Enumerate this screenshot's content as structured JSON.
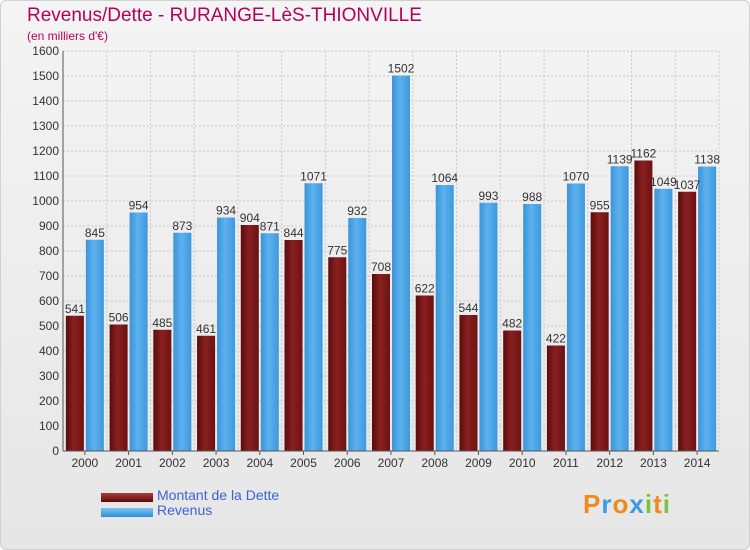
{
  "header": {
    "title": "Revenus/Dette - RURANGE-LèS-THIONVILLE",
    "subtitle": "(en milliers d'€)"
  },
  "brand": {
    "name": "Proxiti",
    "letters": [
      "P",
      "r",
      "o",
      "x",
      "i",
      "t",
      "i"
    ],
    "colors": [
      "#f08a1c",
      "#3a9be0",
      "#f08a1c",
      "#3a9be0",
      "#7dc143",
      "#f08a1c",
      "#7dc143"
    ]
  },
  "colors": {
    "dette": "#7a1616",
    "revenus": "#4aa3e6",
    "title": "#b5005b",
    "legend_text": "#3b63d8"
  },
  "chart_data": {
    "type": "bar",
    "title": "Revenus/Dette - RURANGE-LèS-THIONVILLE",
    "ylabel": "(en milliers d'€)",
    "xlabel": "",
    "ylim": [
      0,
      1600
    ],
    "yticks": [
      0,
      100,
      200,
      300,
      400,
      500,
      600,
      700,
      800,
      900,
      1000,
      1100,
      1200,
      1300,
      1400,
      1500,
      1600
    ],
    "grid": true,
    "legend_position": "bottom-left",
    "categories": [
      "2000",
      "2001",
      "2002",
      "2003",
      "2004",
      "2005",
      "2006",
      "2007",
      "2008",
      "2009",
      "2010",
      "2011",
      "2012",
      "2013",
      "2014"
    ],
    "series": [
      {
        "name": "Montant de la Dette",
        "values": [
          541,
          506,
          485,
          461,
          904,
          844,
          775,
          708,
          622,
          544,
          482,
          422,
          955,
          1162,
          1037
        ],
        "labels": [
          "541",
          "506",
          "485",
          "461",
          "904",
          "844",
          "775",
          "708",
          "622",
          "544",
          "482",
          "422",
          "955",
          "1162",
          "1037"
        ]
      },
      {
        "name": "Revenus",
        "values": [
          845,
          954,
          873,
          934,
          871,
          1071,
          932,
          1502,
          1064,
          993,
          988,
          1070,
          1139,
          1049,
          1138
        ],
        "labels": [
          "845",
          "954",
          "873",
          "934",
          "871",
          "1071",
          "932",
          "1502",
          "1064",
          "993",
          "988",
          "1070",
          "1139",
          "1049",
          "1138"
        ]
      }
    ]
  }
}
